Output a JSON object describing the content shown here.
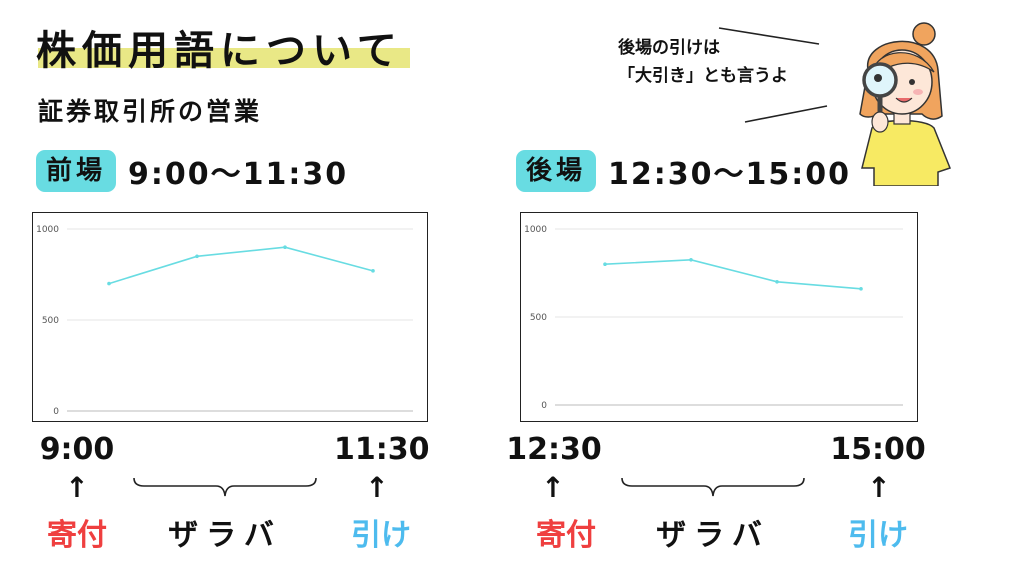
{
  "page": {
    "title": "株価用語について",
    "subtitle": "証券取引所の営業"
  },
  "speech": {
    "line1": "後場の引けは",
    "line2": "「大引き」とも言うよ"
  },
  "morning": {
    "badge": "前場",
    "time_range": "9:00〜11:30",
    "start_time": "9:00",
    "end_time": "11:30",
    "open_label": "寄付",
    "middle_label": "ザラバ",
    "close_label": "引け"
  },
  "afternoon": {
    "badge": "後場",
    "time_range": "12:30〜15:00",
    "start_time": "12:30",
    "end_time": "15:00",
    "open_label": "寄付",
    "middle_label": "ザラバ",
    "close_label": "引け"
  },
  "arrow_glyph": "↑",
  "colors": {
    "title_highlight": "#e9e886",
    "badge": "#68dce2",
    "open_label": "#ef3f3f",
    "close_label": "#4dbbee",
    "series_line": "#68dce2"
  },
  "chart_data": [
    {
      "type": "line",
      "yticks": [
        "1000",
        "500",
        "0"
      ],
      "ylim": [
        0,
        1000
      ],
      "grid": true,
      "series": [
        {
          "values": [
            700,
            850,
            900,
            770
          ]
        }
      ]
    },
    {
      "type": "line",
      "yticks": [
        "1000",
        "500",
        "0"
      ],
      "ylim": [
        0,
        1000
      ],
      "grid": true,
      "series": [
        {
          "values": [
            800,
            825,
            700,
            660
          ]
        }
      ]
    }
  ]
}
